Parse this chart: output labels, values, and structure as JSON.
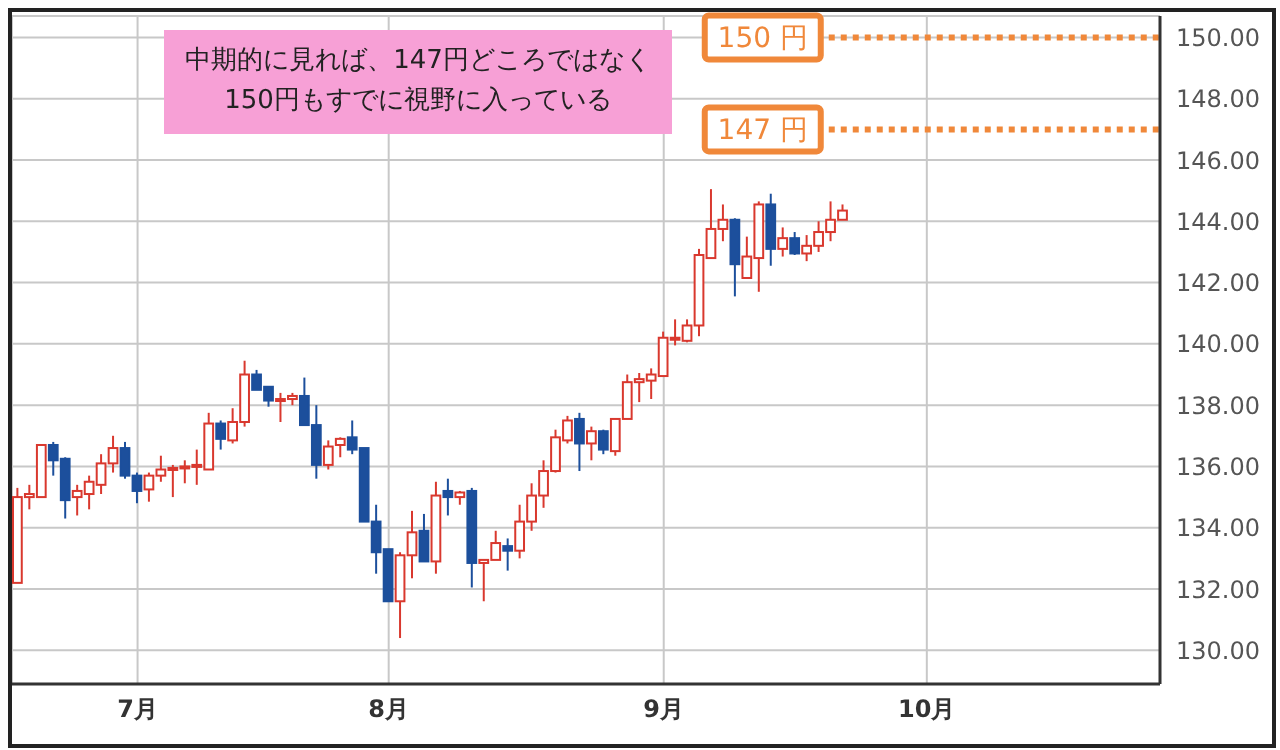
{
  "chart_data": {
    "type": "candlestick",
    "categories": [
      null,
      null,
      null,
      null,
      null,
      null,
      null,
      null,
      null,
      null,
      "7月",
      null,
      null,
      null,
      null,
      null,
      null,
      null,
      null,
      null,
      null,
      null,
      null,
      null,
      null,
      null,
      null,
      null,
      null,
      null,
      null,
      "8月",
      null,
      null,
      null,
      null,
      null,
      null,
      null,
      null,
      null,
      null,
      null,
      null,
      null,
      null,
      null,
      null,
      null,
      null,
      null,
      null,
      null,
      null,
      "9月",
      null,
      null,
      null,
      null,
      null,
      null,
      null,
      null,
      null,
      null,
      null,
      null,
      null,
      null,
      null,
      null,
      null,
      null,
      null,
      null,
      null,
      "10月",
      null,
      null,
      null,
      null,
      null,
      null,
      null,
      null,
      null,
      null,
      null,
      null,
      null,
      null,
      null,
      null,
      null,
      null,
      null
    ],
    "ohlc": [
      [
        132.2,
        135.3,
        132.2,
        135.0
      ],
      [
        135.0,
        135.4,
        134.6,
        135.1
      ],
      [
        135.0,
        136.7,
        135.0,
        136.7
      ],
      [
        136.7,
        136.8,
        135.7,
        136.2
      ],
      [
        136.25,
        136.3,
        134.3,
        134.9
      ],
      [
        135.0,
        135.4,
        134.4,
        135.2
      ],
      [
        135.1,
        135.7,
        134.6,
        135.5
      ],
      [
        135.4,
        136.4,
        135.1,
        136.1
      ],
      [
        136.1,
        137.0,
        135.8,
        136.6
      ],
      [
        136.6,
        136.8,
        135.6,
        135.7
      ],
      [
        135.7,
        135.8,
        134.8,
        135.2
      ],
      [
        135.25,
        135.8,
        134.85,
        135.7
      ],
      [
        135.7,
        136.35,
        135.5,
        135.9
      ],
      [
        135.9,
        136.05,
        135.0,
        135.95
      ],
      [
        135.95,
        136.2,
        135.45,
        136.0
      ],
      [
        136.0,
        136.55,
        135.4,
        136.05
      ],
      [
        135.9,
        137.75,
        135.9,
        137.4
      ],
      [
        137.4,
        137.5,
        136.55,
        136.9
      ],
      [
        136.85,
        137.9,
        136.75,
        137.45
      ],
      [
        137.45,
        139.45,
        137.3,
        139.0
      ],
      [
        139.0,
        139.15,
        138.5,
        138.5
      ],
      [
        138.6,
        138.6,
        137.95,
        138.15
      ],
      [
        138.15,
        138.4,
        137.45,
        138.2
      ],
      [
        138.2,
        138.4,
        138.0,
        138.3
      ],
      [
        138.3,
        138.9,
        137.35,
        137.35
      ],
      [
        137.35,
        138.0,
        135.6,
        136.05
      ],
      [
        136.05,
        136.85,
        135.9,
        136.65
      ],
      [
        136.7,
        136.95,
        136.3,
        136.9
      ],
      [
        136.95,
        137.5,
        136.4,
        136.55
      ],
      [
        136.6,
        136.6,
        134.2,
        134.2
      ],
      [
        134.2,
        134.75,
        132.5,
        133.2
      ],
      [
        133.3,
        133.3,
        131.6,
        131.6
      ],
      [
        131.6,
        133.2,
        130.4,
        133.1
      ],
      [
        133.1,
        134.55,
        132.35,
        133.85
      ],
      [
        133.9,
        134.45,
        132.9,
        132.9
      ],
      [
        132.9,
        135.5,
        132.5,
        135.05
      ],
      [
        135.2,
        135.6,
        134.4,
        135.0
      ],
      [
        135.0,
        135.2,
        134.75,
        135.15
      ],
      [
        135.2,
        135.3,
        132.05,
        132.85
      ],
      [
        132.85,
        132.95,
        131.6,
        132.95
      ],
      [
        132.95,
        133.9,
        132.95,
        133.5
      ],
      [
        133.4,
        133.65,
        132.6,
        133.25
      ],
      [
        133.25,
        134.75,
        133.0,
        134.2
      ],
      [
        134.2,
        135.45,
        133.9,
        135.05
      ],
      [
        135.05,
        136.2,
        134.65,
        135.85
      ],
      [
        135.85,
        137.2,
        135.8,
        136.95
      ],
      [
        136.85,
        137.65,
        136.75,
        137.5
      ],
      [
        137.55,
        137.75,
        135.85,
        136.75
      ],
      [
        136.75,
        137.3,
        136.2,
        137.15
      ],
      [
        137.15,
        137.2,
        136.4,
        136.55
      ],
      [
        136.5,
        137.55,
        136.35,
        137.55
      ],
      [
        137.55,
        139.0,
        137.55,
        138.75
      ],
      [
        138.75,
        139.05,
        138.1,
        138.85
      ],
      [
        138.8,
        139.2,
        138.2,
        139.0
      ],
      [
        138.95,
        140.4,
        138.95,
        140.2
      ],
      [
        140.15,
        140.8,
        139.95,
        140.2
      ],
      [
        140.1,
        140.8,
        140.05,
        140.6
      ],
      [
        140.6,
        143.1,
        140.25,
        142.9
      ],
      [
        142.8,
        145.05,
        142.8,
        143.75
      ],
      [
        143.75,
        144.55,
        143.35,
        144.05
      ],
      [
        144.05,
        144.1,
        141.55,
        142.6
      ],
      [
        142.15,
        143.5,
        142.15,
        142.85
      ],
      [
        142.8,
        144.65,
        141.7,
        144.55
      ],
      [
        144.55,
        144.9,
        142.55,
        143.1
      ],
      [
        143.1,
        143.8,
        142.85,
        143.45
      ],
      [
        143.45,
        143.65,
        142.9,
        142.95
      ],
      [
        142.95,
        143.55,
        142.7,
        143.2
      ],
      [
        143.2,
        144.0,
        143.0,
        143.65
      ],
      [
        143.65,
        144.65,
        143.35,
        144.05
      ],
      [
        144.05,
        144.55,
        144.05,
        144.35
      ],
      null,
      null,
      null,
      null,
      null,
      null,
      null,
      null,
      null,
      null,
      null,
      null,
      null,
      null,
      null,
      null,
      null,
      null,
      null,
      null,
      null,
      null,
      null,
      null,
      null,
      null
    ],
    "colors": [
      "#d9382e",
      "#d9382e",
      "#d9382e",
      "#1c4f9c",
      "#1c4f9c",
      "#d9382e",
      "#d9382e",
      "#d9382e",
      "#d9382e",
      "#1c4f9c",
      "#1c4f9c",
      "#d9382e",
      "#d9382e",
      "#d9382e",
      "#d9382e",
      "#d9382e",
      "#d9382e",
      "#1c4f9c",
      "#d9382e",
      "#d9382e",
      "#1c4f9c",
      "#1c4f9c",
      "#d9382e",
      "#d9382e",
      "#1c4f9c",
      "#1c4f9c",
      "#d9382e",
      "#d9382e",
      "#1c4f9c",
      "#1c4f9c",
      "#1c4f9c",
      "#1c4f9c",
      "#d9382e",
      "#d9382e",
      "#1c4f9c",
      "#d9382e",
      "#1c4f9c",
      "#d9382e",
      "#1c4f9c",
      "#d9382e",
      "#d9382e",
      "#1c4f9c",
      "#d9382e",
      "#d9382e",
      "#d9382e",
      "#d9382e",
      "#d9382e",
      "#1c4f9c",
      "#d9382e",
      "#1c4f9c",
      "#d9382e",
      "#d9382e",
      "#d9382e",
      "#d9382e",
      "#d9382e",
      "#d9382e",
      "#d9382e",
      "#d9382e",
      "#d9382e",
      "#d9382e",
      "#1c4f9c",
      "#d9382e",
      "#d9382e",
      "#1c4f9c",
      "#d9382e",
      "#1c4f9c",
      "#d9382e",
      "#d9382e",
      "#d9382e",
      "#d9382e",
      null,
      null,
      null,
      null,
      null,
      null,
      null,
      null,
      null,
      null,
      null,
      null,
      null,
      null,
      null,
      null,
      null,
      null,
      null,
      null,
      null,
      null,
      null,
      null,
      null,
      null
    ],
    "ylim": [
      128.9,
      150.7
    ],
    "yticks": [
      {
        "value": 130,
        "label": "130.00"
      },
      {
        "value": 132,
        "label": "132.00"
      },
      {
        "value": 134,
        "label": "134.00"
      },
      {
        "value": 136,
        "label": "136.00"
      },
      {
        "value": 138,
        "label": "138.00"
      },
      {
        "value": 140,
        "label": "140.00"
      },
      {
        "value": 142,
        "label": "142.00"
      },
      {
        "value": 144,
        "label": "144.00"
      },
      {
        "value": 146,
        "label": "146.00"
      },
      {
        "value": 148,
        "label": "148.00"
      },
      {
        "value": 150,
        "label": "150.00"
      }
    ],
    "grid": true,
    "ref_lines": [
      {
        "axis": "y",
        "value": 150,
        "label": "150 円",
        "color": "#f0883a",
        "line_style": "dotted"
      },
      {
        "axis": "y",
        "value": 147,
        "label": "147 円",
        "color": "#f0883a",
        "line_style": "dotted"
      }
    ],
    "annotations": [
      "中期的に見れば、147円どころではなく\n150円もすでに視野に入っている"
    ]
  }
}
